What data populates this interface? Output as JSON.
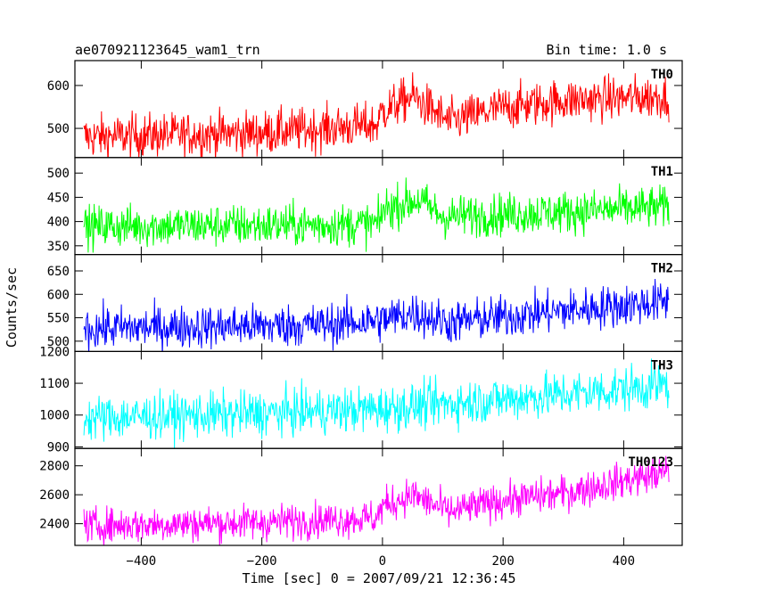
{
  "header": {
    "title_left": "ae070921123645_wam1_trn",
    "title_right": "Bin time: 1.0 s"
  },
  "axes": {
    "ylabel": "Counts/sec",
    "xlabel": "Time [sec] 0 = 2007/09/21 12:36:45"
  },
  "chart_data": {
    "type": "line",
    "x_range": [
      -510,
      497
    ],
    "x_ticks": [
      -400,
      -200,
      0,
      200,
      400
    ],
    "x_tick_labels": [
      "−400",
      "−200",
      "0",
      "200",
      "400"
    ],
    "bin_time_s": 1.0,
    "x_start": -495,
    "x_end": 475,
    "grid": false,
    "panels": [
      {
        "name": "TH0",
        "color": "#ff0000",
        "ylim": [
          432,
          658
        ],
        "yticks": [
          500,
          600
        ],
        "ytick_labels": [
          "500",
          "600"
        ],
        "trend": [
          [
            -495,
            480
          ],
          [
            -200,
            490
          ],
          [
            -10,
            508
          ],
          [
            0,
            540
          ],
          [
            50,
            575
          ],
          [
            110,
            515
          ],
          [
            200,
            548
          ],
          [
            300,
            565
          ],
          [
            475,
            575
          ]
        ],
        "noise": 26
      },
      {
        "name": "TH1",
        "color": "#00ff00",
        "ylim": [
          332,
          532
        ],
        "yticks": [
          350,
          400,
          450,
          500
        ],
        "ytick_labels": [
          "350",
          "400",
          "450",
          "500"
        ],
        "trend": [
          [
            -495,
            390
          ],
          [
            -100,
            393
          ],
          [
            -5,
            395
          ],
          [
            0,
            425
          ],
          [
            60,
            445
          ],
          [
            100,
            410
          ],
          [
            300,
            420
          ],
          [
            475,
            430
          ]
        ],
        "noise": 22
      },
      {
        "name": "TH2",
        "color": "#0000ff",
        "ylim": [
          478,
          685
        ],
        "yticks": [
          500,
          550,
          600,
          650
        ],
        "ytick_labels": [
          "500",
          "550",
          "600",
          "650"
        ],
        "trend": [
          [
            -495,
            527
          ],
          [
            -100,
            535
          ],
          [
            0,
            545
          ],
          [
            50,
            560
          ],
          [
            110,
            540
          ],
          [
            300,
            565
          ],
          [
            475,
            585
          ]
        ],
        "noise": 23
      },
      {
        "name": "TH3",
        "color": "#00ffff",
        "ylim": [
          895,
          1200
        ],
        "yticks": [
          900,
          1000,
          1100,
          1200
        ],
        "ytick_labels": [
          "900",
          "1000",
          "1100",
          "1200"
        ],
        "trend": [
          [
            -495,
            990
          ],
          [
            -200,
            1005
          ],
          [
            0,
            1020
          ],
          [
            100,
            1035
          ],
          [
            300,
            1065
          ],
          [
            475,
            1095
          ]
        ],
        "noise": 36
      },
      {
        "name": "TH0123",
        "color": "#ff00ff",
        "ylim": [
          2250,
          2920
        ],
        "yticks": [
          2400,
          2600,
          2800
        ],
        "ytick_labels": [
          "2400",
          "2600",
          "2800"
        ],
        "trend": [
          [
            -495,
            2385
          ],
          [
            -200,
            2410
          ],
          [
            -10,
            2440
          ],
          [
            0,
            2520
          ],
          [
            50,
            2600
          ],
          [
            110,
            2480
          ],
          [
            200,
            2560
          ],
          [
            300,
            2610
          ],
          [
            475,
            2760
          ]
        ],
        "noise": 62
      }
    ]
  }
}
